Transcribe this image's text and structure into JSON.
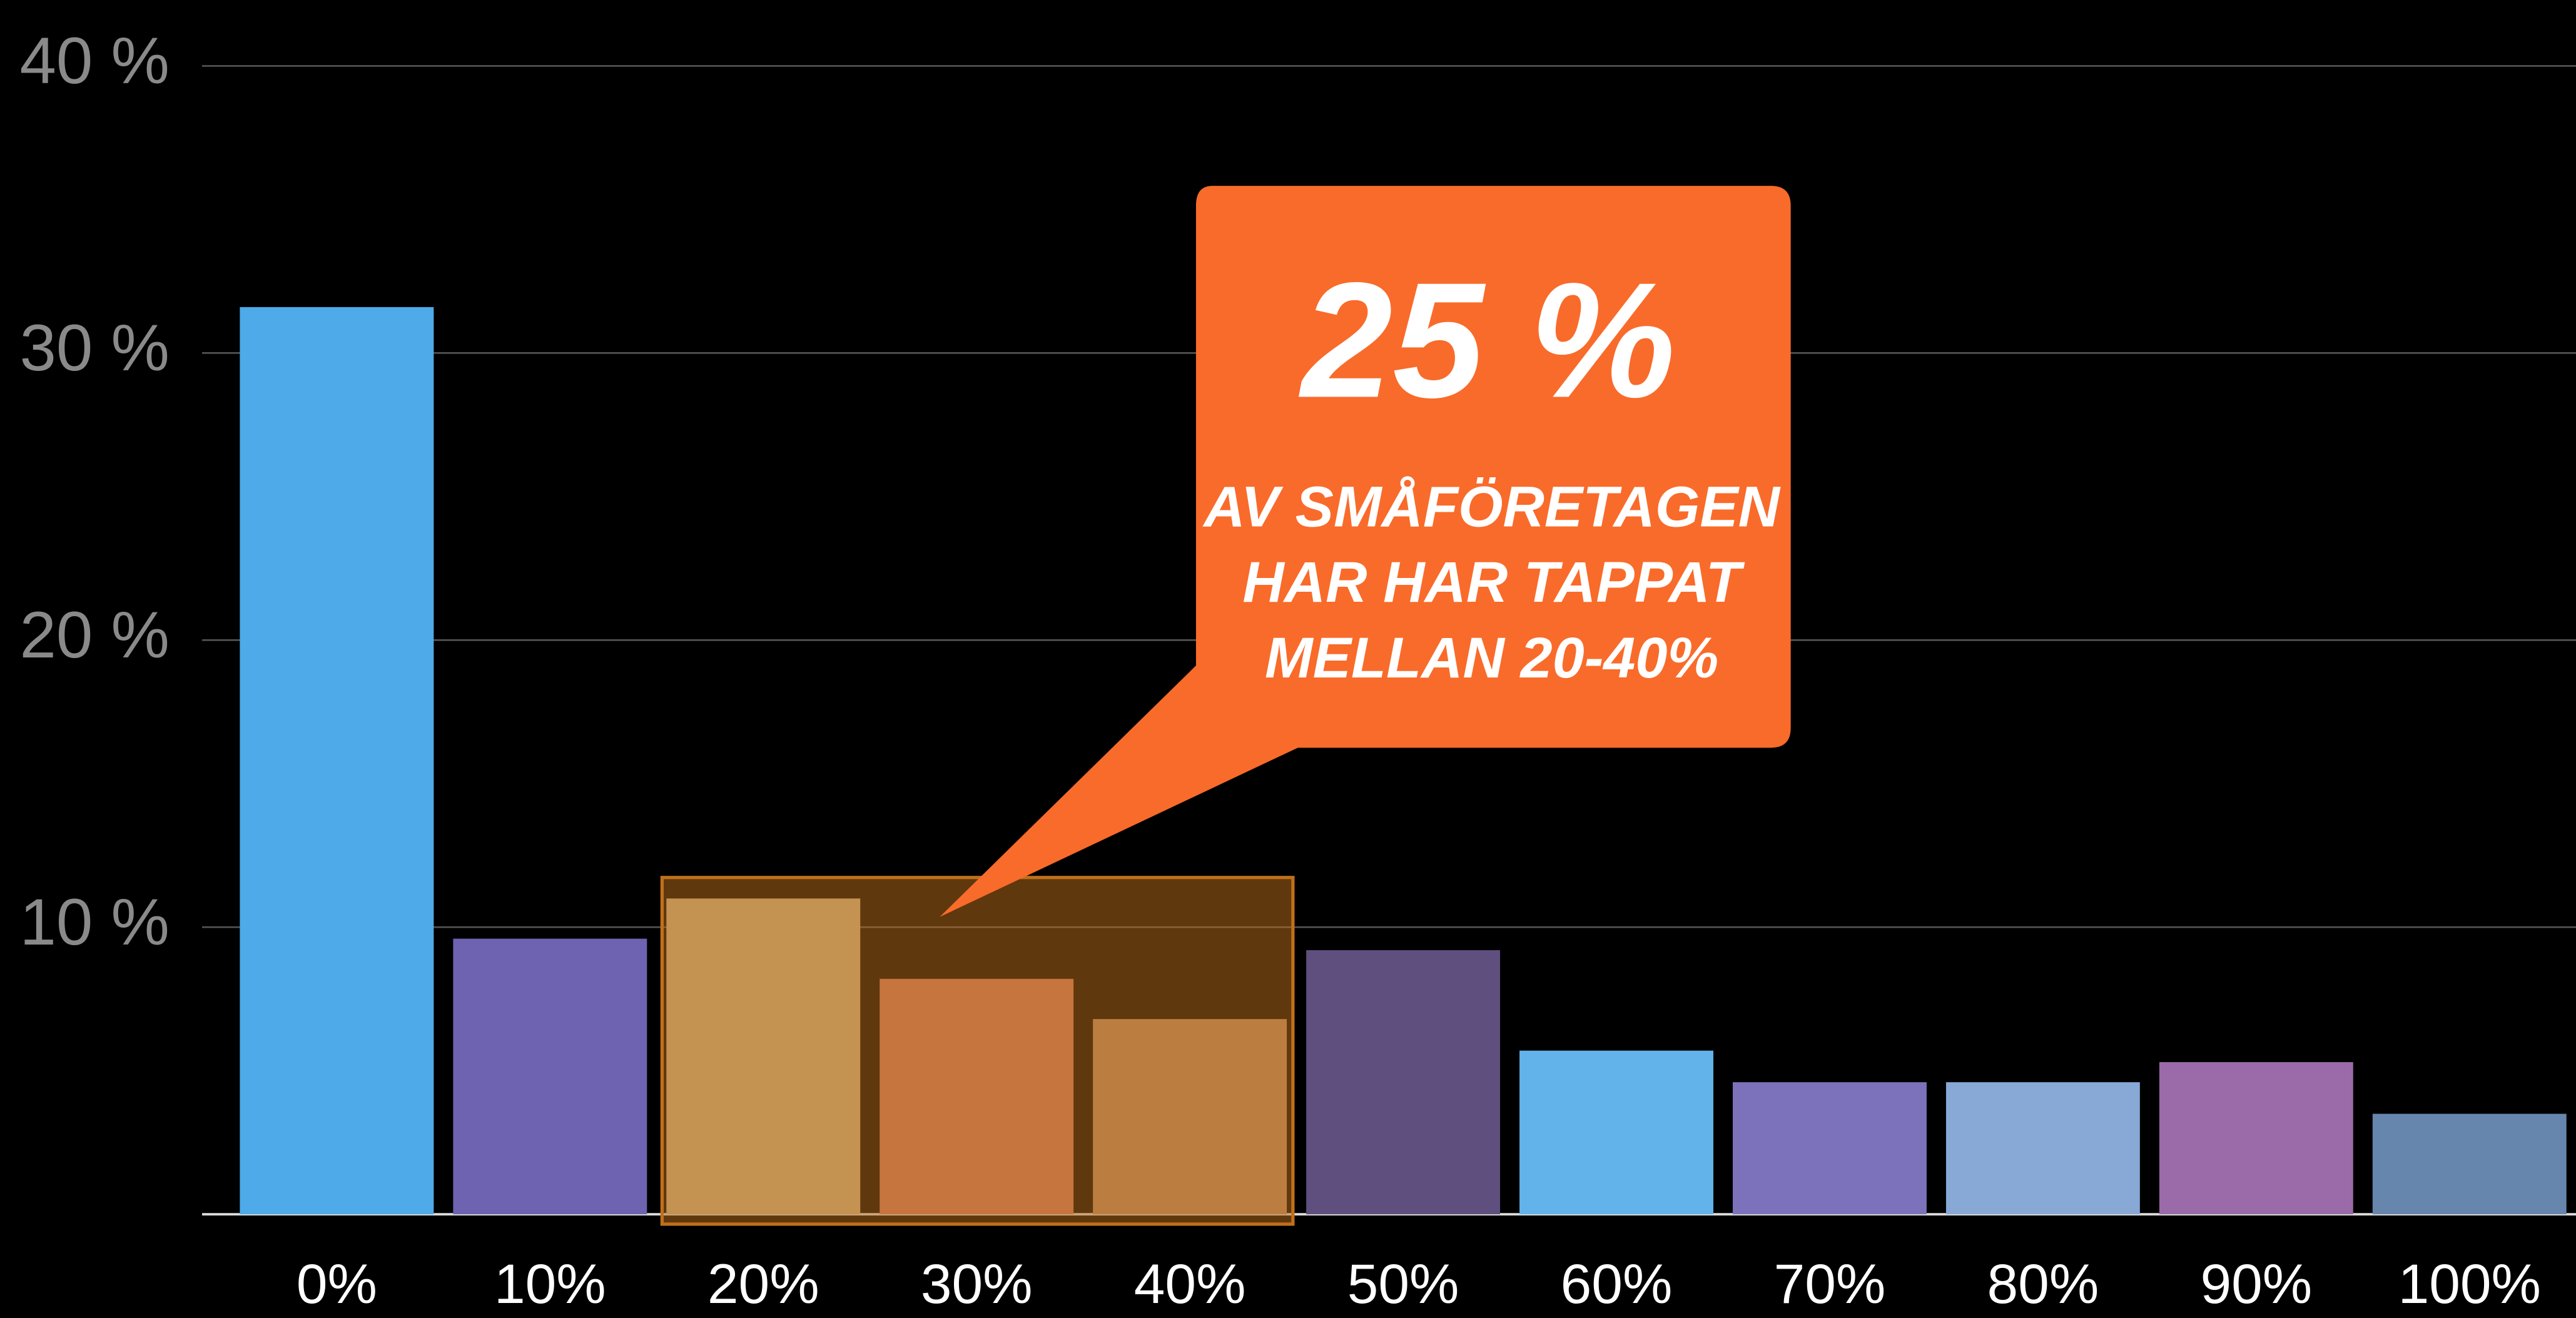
{
  "chart_data": {
    "type": "bar",
    "categories": [
      "0%",
      "10%",
      "20%",
      "30%",
      "40%",
      "50%",
      "60%",
      "70%",
      "80%",
      "90%",
      "100%"
    ],
    "values": [
      31.6,
      9.6,
      11.0,
      8.2,
      6.8,
      9.2,
      5.7,
      4.6,
      4.6,
      5.3,
      3.5
    ],
    "colors": [
      "#4eaae8",
      "#6e63b1",
      "#c9b488",
      "#cd7a63",
      "#b88a66",
      "#5f4f7e",
      "#62b3ea",
      "#7c72bb",
      "#88a8d6",
      "#9b6aa8",
      "#6786ad"
    ],
    "ylim": [
      0,
      40
    ],
    "yticks": [
      {
        "value": 10,
        "label": "10 %"
      },
      {
        "value": 20,
        "label": "20 %"
      },
      {
        "value": 30,
        "label": "30 %"
      },
      {
        "value": 40,
        "label": "40 %"
      }
    ],
    "grid": true,
    "annotation": {
      "headline": "25 %",
      "lines": [
        "AV SMÅFÖRETAGEN",
        "HAR HAR TAPPAT",
        "MELLAN  20-40%"
      ]
    }
  }
}
